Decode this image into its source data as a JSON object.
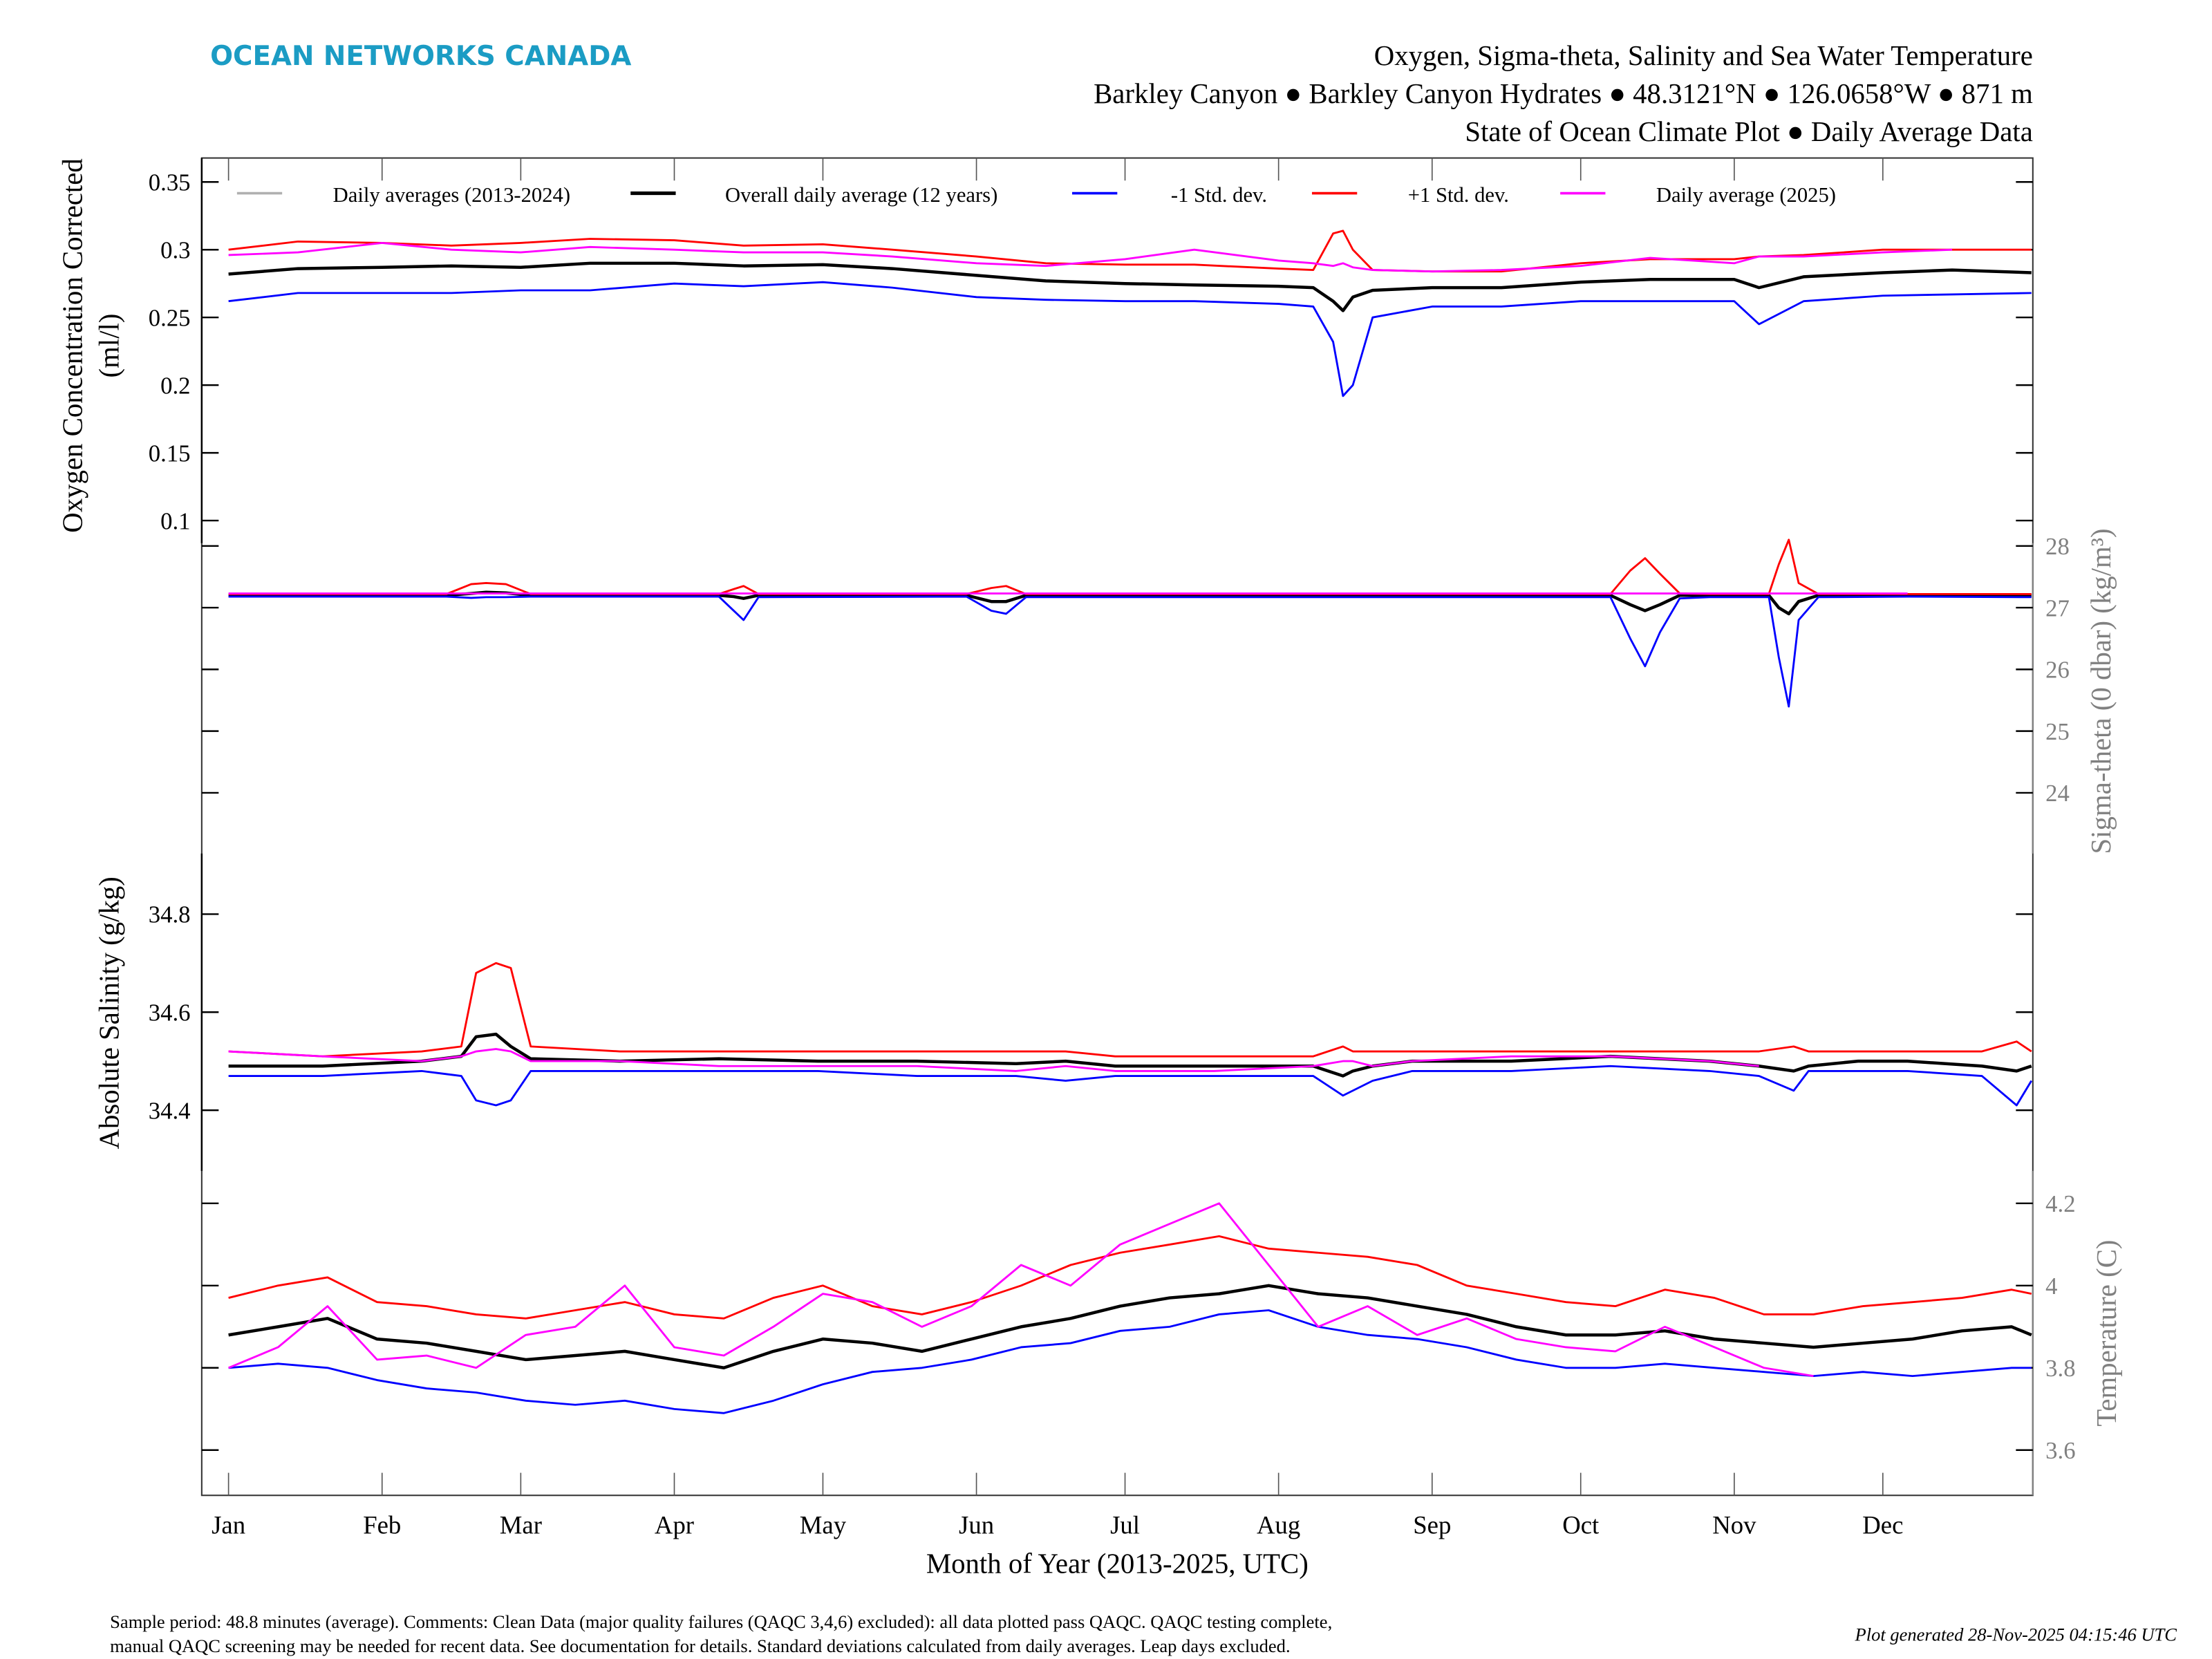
{
  "header": {
    "logo": "OCEAN NETWORKS CANADA",
    "title_line1": "Oxygen, Sigma-theta, Salinity and Sea Water Temperature",
    "title_line2": "Barkley Canyon ● Barkley Canyon Hydrates ● 48.3121°N ● 126.0658°W ● 871 m",
    "title_line3": "State of Ocean Climate Plot ● Daily Average Data"
  },
  "footer": {
    "comment_line1": "Sample period: 48.8 minutes (average). Comments: Clean Data (major quality failures (QAQC 3,4,6) excluded): all data plotted pass QAQC. QAQC testing complete,",
    "comment_line2": "manual QAQC screening may be needed for recent data. See documentation for details. Standard deviations calculated from daily averages. Leap days excluded.",
    "generated": "Plot generated 28-Nov-2025 04:15:46 UTC"
  },
  "colors": {
    "logo": "#1b9cc4",
    "daily_averages": "#b0b0b0",
    "overall": "#000000",
    "minus_std": "#0000ff",
    "plus_std": "#ff0000",
    "year_2025": "#ff00ff",
    "right_axis": "#808080"
  },
  "legend": [
    {
      "key": "daily_averages",
      "label": "Daily averages (2013-2024)"
    },
    {
      "key": "overall",
      "label": "Overall daily average (12 years)"
    },
    {
      "key": "minus_std",
      "label": "-1 Std. dev."
    },
    {
      "key": "plus_std",
      "label": "+1 Std. dev."
    },
    {
      "key": "year_2025",
      "label": "Daily average (2025)"
    }
  ],
  "chart_data": [
    {
      "type": "line",
      "id": "oxygen",
      "ylabel_line1": "Oxygen Concentration Corrected",
      "ylabel_line2": "(ml/l)",
      "axis_side": "left",
      "xlabel": "Month of Year (2013-2025, UTC)",
      "x_ticks": [
        "Jan",
        "Feb",
        "Mar",
        "Apr",
        "May",
        "Jun",
        "Jul",
        "Aug",
        "Sep",
        "Oct",
        "Nov",
        "Dec"
      ],
      "x_unit": "day of year",
      "y_ticks": [
        "0.35",
        "0.3",
        "0.25",
        "0.2",
        "0.15",
        "0.1"
      ],
      "y_tick_values": [
        0.35,
        0.3,
        0.25,
        0.2,
        0.15,
        0.1
      ],
      "x": [
        1,
        15,
        32,
        46,
        60,
        74,
        91,
        105,
        121,
        135,
        152,
        166,
        182,
        196,
        213,
        220,
        224,
        226,
        228,
        232,
        244,
        258,
        274,
        288,
        305,
        310,
        319,
        335,
        349,
        365
      ],
      "series": [
        {
          "name": "Overall daily average (12 years)",
          "key": "overall",
          "values": [
            0.282,
            0.286,
            0.287,
            0.288,
            0.287,
            0.29,
            0.29,
            0.288,
            0.289,
            0.286,
            0.281,
            0.277,
            0.275,
            0.274,
            0.273,
            0.272,
            0.262,
            0.255,
            0.265,
            0.27,
            0.272,
            0.272,
            0.276,
            0.278,
            0.278,
            0.272,
            0.28,
            0.283,
            0.285,
            0.283
          ]
        },
        {
          "name": "-1 Std. dev.",
          "key": "minus_std",
          "values": [
            0.262,
            0.268,
            0.268,
            0.268,
            0.27,
            0.27,
            0.275,
            0.273,
            0.276,
            0.272,
            0.265,
            0.263,
            0.262,
            0.262,
            0.26,
            0.258,
            0.232,
            0.192,
            0.2,
            0.25,
            0.258,
            0.258,
            0.262,
            0.262,
            0.262,
            0.245,
            0.262,
            0.266,
            0.267,
            0.268
          ]
        },
        {
          "name": "+1 Std. dev.",
          "key": "plus_std",
          "values": [
            0.3,
            0.306,
            0.305,
            0.303,
            0.305,
            0.308,
            0.307,
            0.303,
            0.304,
            0.3,
            0.295,
            0.29,
            0.289,
            0.289,
            0.286,
            0.285,
            0.312,
            0.314,
            0.3,
            0.285,
            0.284,
            0.284,
            0.29,
            0.293,
            0.293,
            0.295,
            0.296,
            0.3,
            0.3,
            0.3
          ]
        },
        {
          "name": "Daily average (2025)",
          "key": "year_2025",
          "values": [
            0.296,
            0.298,
            0.305,
            0.3,
            0.298,
            0.302,
            0.3,
            0.298,
            0.298,
            0.295,
            0.29,
            0.288,
            0.293,
            0.3,
            0.292,
            0.29,
            0.288,
            0.29,
            0.287,
            0.285,
            0.284,
            0.285,
            0.288,
            0.294,
            0.29,
            0.295,
            0.295,
            0.298,
            0.3,
            null
          ]
        }
      ]
    },
    {
      "type": "line",
      "id": "sigma",
      "ylabel": "Sigma-theta (0 dbar) (kg/m³)",
      "axis_side": "right",
      "y_ticks": [
        "28",
        "27",
        "26",
        "25",
        "24"
      ],
      "y_tick_values": [
        28,
        27,
        26,
        25,
        24
      ],
      "x": [
        1,
        45,
        50,
        53,
        57,
        62,
        100,
        103,
        105,
        108,
        150,
        155,
        158,
        162,
        200,
        250,
        280,
        284,
        287,
        290,
        294,
        300,
        312,
        314,
        316,
        318,
        322,
        340,
        365
      ],
      "series": [
        {
          "name": "Overall daily average (12 years)",
          "key": "overall",
          "values": [
            27.2,
            27.2,
            27.23,
            27.25,
            27.24,
            27.2,
            27.2,
            27.18,
            27.15,
            27.2,
            27.2,
            27.1,
            27.1,
            27.2,
            27.2,
            27.2,
            27.2,
            27.05,
            26.95,
            27.05,
            27.2,
            27.2,
            27.2,
            27.0,
            26.9,
            27.1,
            27.2,
            27.2,
            27.2
          ]
        },
        {
          "name": "-1 Std. dev.",
          "key": "minus_std",
          "values": [
            27.18,
            27.18,
            27.16,
            27.17,
            27.17,
            27.18,
            27.18,
            26.95,
            26.8,
            27.17,
            27.18,
            26.95,
            26.9,
            27.17,
            27.17,
            27.17,
            27.17,
            26.5,
            26.05,
            26.6,
            27.15,
            27.17,
            27.17,
            26.2,
            25.4,
            26.8,
            27.17,
            27.18,
            27.17
          ]
        },
        {
          "name": "+1 Std. dev.",
          "key": "plus_std",
          "values": [
            27.22,
            27.22,
            27.38,
            27.4,
            27.38,
            27.22,
            27.22,
            27.3,
            27.35,
            27.22,
            27.22,
            27.32,
            27.35,
            27.22,
            27.22,
            27.22,
            27.22,
            27.6,
            27.8,
            27.55,
            27.23,
            27.22,
            27.22,
            27.7,
            28.1,
            27.4,
            27.22,
            27.22,
            27.22
          ]
        },
        {
          "name": "Daily average (2025)",
          "key": "year_2025",
          "values": [
            27.23,
            27.23,
            27.23,
            27.23,
            27.23,
            27.23,
            27.23,
            27.23,
            27.23,
            27.23,
            27.23,
            27.23,
            27.23,
            27.23,
            27.23,
            27.23,
            27.23,
            27.23,
            27.23,
            27.23,
            27.23,
            27.23,
            27.23,
            27.23,
            27.23,
            27.23,
            27.23,
            27.23,
            null
          ]
        }
      ]
    },
    {
      "type": "line",
      "id": "salinity",
      "ylabel": "Absolute Salinity (g/kg)",
      "axis_side": "left",
      "y_ticks": [
        "34.8",
        "34.6",
        "34.4"
      ],
      "y_tick_values": [
        34.8,
        34.6,
        34.4
      ],
      "x": [
        1,
        20,
        40,
        48,
        51,
        55,
        58,
        62,
        80,
        100,
        120,
        140,
        160,
        170,
        180,
        200,
        220,
        226,
        228,
        232,
        240,
        260,
        280,
        300,
        310,
        317,
        320,
        330,
        340,
        355,
        362,
        365
      ],
      "series": [
        {
          "name": "Overall daily average (12 years)",
          "key": "overall",
          "values": [
            34.49,
            34.49,
            34.5,
            34.51,
            34.55,
            34.555,
            34.53,
            34.505,
            34.5,
            34.505,
            34.5,
            34.5,
            34.495,
            34.5,
            34.49,
            34.49,
            34.49,
            34.47,
            34.48,
            34.49,
            34.5,
            34.5,
            34.51,
            34.5,
            34.49,
            34.48,
            34.49,
            34.5,
            34.5,
            34.49,
            34.48,
            34.49
          ]
        },
        {
          "name": "-1 Std. dev.",
          "key": "minus_std",
          "values": [
            34.47,
            34.47,
            34.48,
            34.47,
            34.42,
            34.41,
            34.42,
            34.48,
            34.48,
            34.48,
            34.48,
            34.47,
            34.47,
            34.46,
            34.47,
            34.47,
            34.47,
            34.43,
            34.44,
            34.46,
            34.48,
            34.48,
            34.49,
            34.48,
            34.47,
            34.44,
            34.48,
            34.48,
            34.48,
            34.47,
            34.41,
            34.46
          ]
        },
        {
          "name": "+1 Std. dev.",
          "key": "plus_std",
          "values": [
            34.52,
            34.51,
            34.52,
            34.53,
            34.68,
            34.7,
            34.69,
            34.53,
            34.52,
            34.52,
            34.52,
            34.52,
            34.52,
            34.52,
            34.51,
            34.51,
            34.51,
            34.53,
            34.52,
            34.52,
            34.52,
            34.52,
            34.52,
            34.52,
            34.52,
            34.53,
            34.52,
            34.52,
            34.52,
            34.52,
            34.54,
            34.52
          ]
        },
        {
          "name": "Daily average (2025)",
          "key": "year_2025",
          "values": [
            34.52,
            34.51,
            34.5,
            34.51,
            34.52,
            34.525,
            34.52,
            34.5,
            34.5,
            34.49,
            34.49,
            34.49,
            34.48,
            34.49,
            34.48,
            34.48,
            34.49,
            34.5,
            34.5,
            34.49,
            34.5,
            34.51,
            34.51,
            34.5,
            34.49,
            null,
            null,
            null,
            null,
            null,
            null,
            null
          ]
        }
      ]
    },
    {
      "type": "line",
      "id": "temperature",
      "ylabel": "Temperature (C)",
      "axis_side": "right",
      "y_ticks": [
        "4.2",
        "4",
        "3.8",
        "3.6"
      ],
      "y_tick_values": [
        4.2,
        4.0,
        3.8,
        3.6
      ],
      "x": [
        1,
        11,
        21,
        31,
        41,
        51,
        61,
        71,
        81,
        91,
        101,
        111,
        121,
        131,
        141,
        151,
        161,
        171,
        181,
        191,
        201,
        211,
        221,
        231,
        241,
        251,
        261,
        271,
        281,
        291,
        301,
        311,
        321,
        331,
        341,
        351,
        361,
        365
      ],
      "series": [
        {
          "name": "Overall daily average (12 years)",
          "key": "overall",
          "values": [
            3.88,
            3.9,
            3.92,
            3.87,
            3.86,
            3.84,
            3.82,
            3.83,
            3.84,
            3.82,
            3.8,
            3.84,
            3.87,
            3.86,
            3.84,
            3.87,
            3.9,
            3.92,
            3.95,
            3.97,
            3.98,
            4.0,
            3.98,
            3.97,
            3.95,
            3.93,
            3.9,
            3.88,
            3.88,
            3.89,
            3.87,
            3.86,
            3.85,
            3.86,
            3.87,
            3.89,
            3.9,
            3.88
          ]
        },
        {
          "name": "-1 Std. dev.",
          "key": "minus_std",
          "values": [
            3.8,
            3.81,
            3.8,
            3.77,
            3.75,
            3.74,
            3.72,
            3.71,
            3.72,
            3.7,
            3.69,
            3.72,
            3.76,
            3.79,
            3.8,
            3.82,
            3.85,
            3.86,
            3.89,
            3.9,
            3.93,
            3.94,
            3.9,
            3.88,
            3.87,
            3.85,
            3.82,
            3.8,
            3.8,
            3.81,
            3.8,
            3.79,
            3.78,
            3.79,
            3.78,
            3.79,
            3.8,
            3.8
          ]
        },
        {
          "name": "+1 Std. dev.",
          "key": "plus_std",
          "values": [
            3.97,
            4.0,
            4.02,
            3.96,
            3.95,
            3.93,
            3.92,
            3.94,
            3.96,
            3.93,
            3.92,
            3.97,
            4.0,
            3.95,
            3.93,
            3.96,
            4.0,
            4.05,
            4.08,
            4.1,
            4.12,
            4.09,
            4.08,
            4.07,
            4.05,
            4.0,
            3.98,
            3.96,
            3.95,
            3.99,
            3.97,
            3.93,
            3.93,
            3.95,
            3.96,
            3.97,
            3.99,
            3.98
          ]
        },
        {
          "name": "Daily average (2025)",
          "key": "year_2025",
          "values": [
            3.8,
            3.85,
            3.95,
            3.82,
            3.83,
            3.8,
            3.88,
            3.9,
            4.0,
            3.85,
            3.83,
            3.9,
            3.98,
            3.96,
            3.9,
            3.95,
            4.05,
            4.0,
            4.1,
            4.15,
            4.2,
            4.05,
            3.9,
            3.95,
            3.88,
            3.92,
            3.87,
            3.85,
            3.84,
            3.9,
            3.85,
            3.8,
            3.78,
            null,
            null,
            null,
            null,
            null
          ]
        }
      ]
    }
  ]
}
